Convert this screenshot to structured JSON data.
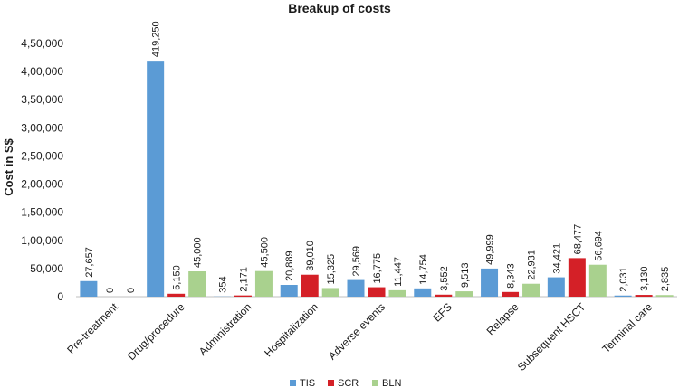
{
  "chart_data": {
    "type": "bar",
    "title": "Breakup of costs",
    "xlabel": "",
    "ylabel": "Cost in S$",
    "ylim": [
      0,
      450000
    ],
    "yticks": [
      0,
      50000,
      100000,
      150000,
      200000,
      250000,
      300000,
      350000,
      400000,
      450000
    ],
    "ytick_labels": [
      "0",
      "50,000",
      "1,00,000",
      "1,50,000",
      "2,00,000",
      "2,50,000",
      "3,00,000",
      "3,50,000",
      "4,00,000",
      "4,50,000"
    ],
    "categories": [
      "Pre-treatment",
      "Drug/procedure",
      "Administration",
      "Hospitalization",
      "Adverse events",
      "EFS",
      "Relapse",
      "Subsequent HSCT",
      "Terminal care"
    ],
    "series": [
      {
        "name": "TIS",
        "color": "#5b9bd5",
        "values": [
          27657,
          419250,
          354,
          20889,
          29569,
          14754,
          49999,
          34421,
          2031
        ],
        "labels": [
          "27,657",
          "419,250",
          "354",
          "20,889",
          "29,569",
          "14,754",
          "49,999",
          "34,421",
          "2,031"
        ]
      },
      {
        "name": "SCR",
        "color": "#d42027",
        "values": [
          0,
          5150,
          2171,
          39010,
          16775,
          3552,
          8343,
          68477,
          3130
        ],
        "labels": [
          "0",
          "5,150",
          "2,171",
          "39,010",
          "16,775",
          "3,552",
          "8,343",
          "68,477",
          "3,130"
        ]
      },
      {
        "name": "BLN",
        "color": "#a9d18e",
        "values": [
          0,
          45000,
          45500,
          15325,
          11447,
          9513,
          22931,
          56694,
          2835
        ],
        "labels": [
          "0",
          "45,000",
          "45,500",
          "15,325",
          "11,447",
          "9,513",
          "22,931",
          "56,694",
          "2,835"
        ]
      }
    ],
    "legend_position": "bottom",
    "grid": false
  }
}
